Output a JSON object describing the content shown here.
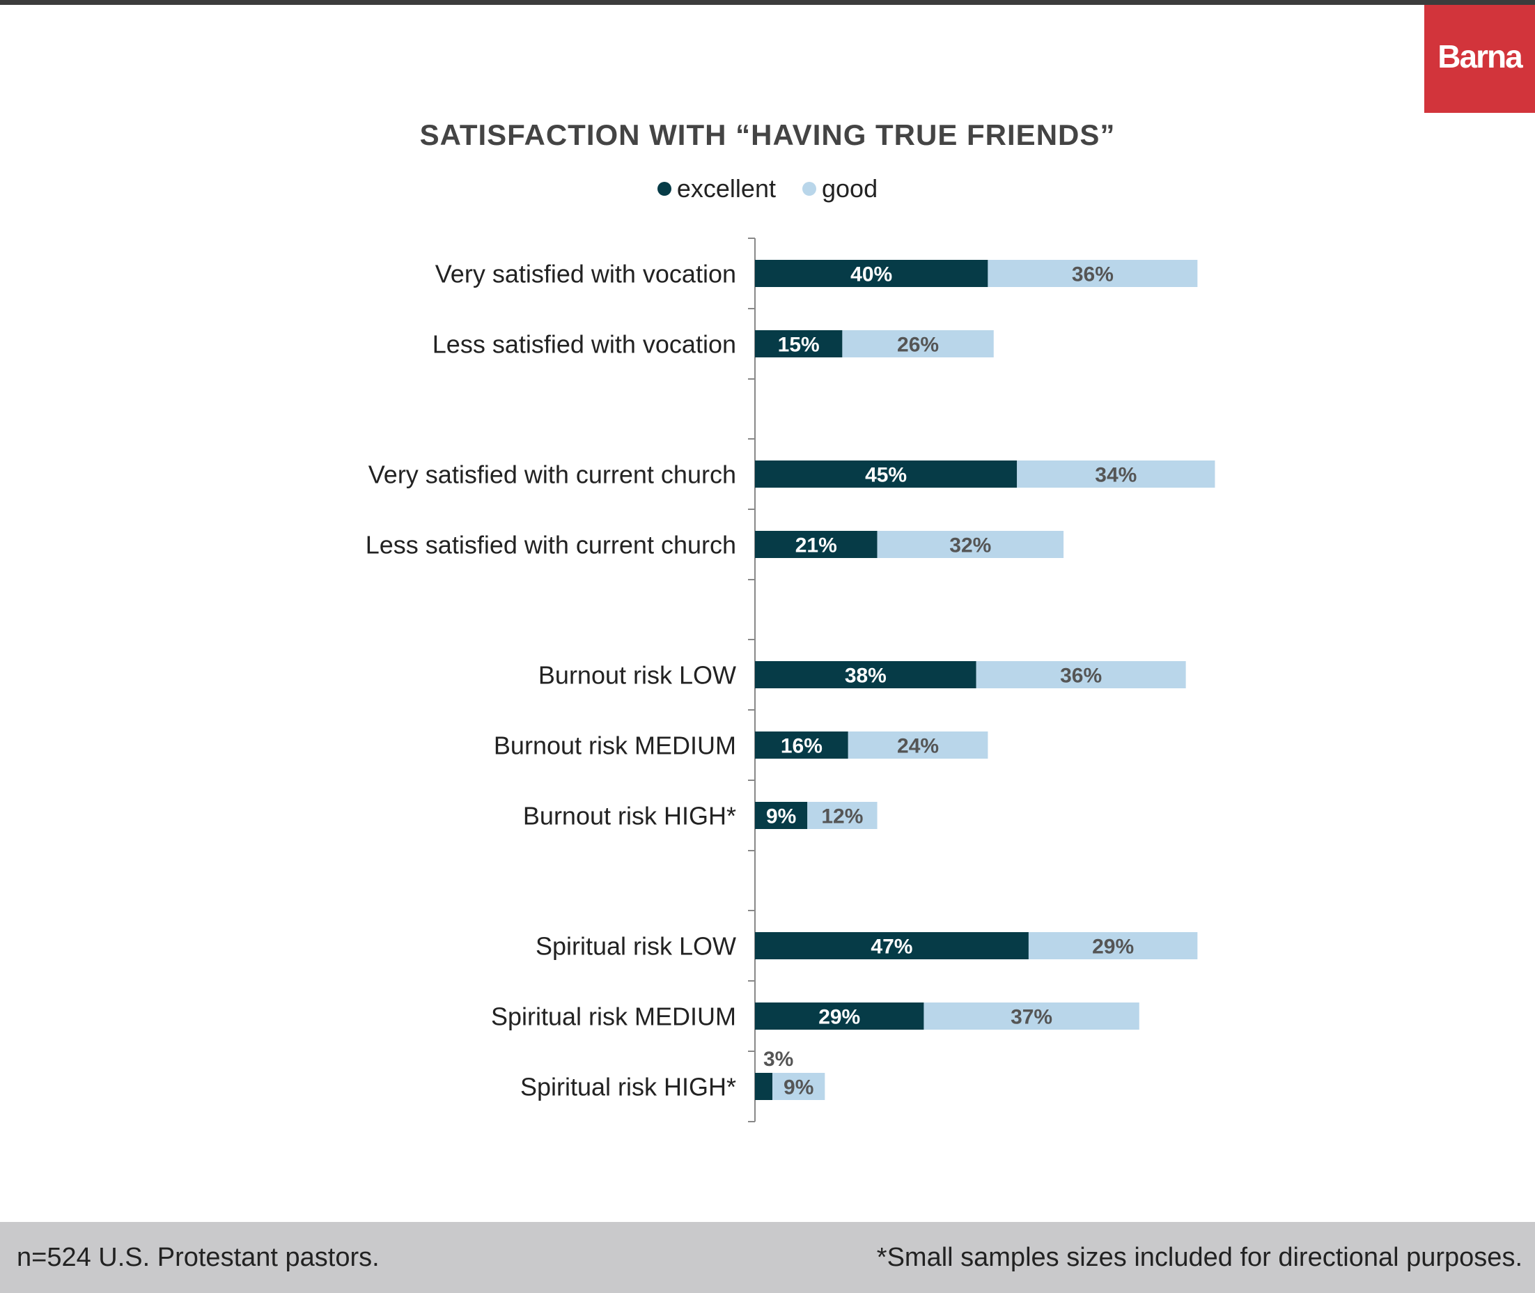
{
  "brand": {
    "logo_text": "Barna"
  },
  "chart_data": {
    "type": "bar",
    "stacked": true,
    "orientation": "horizontal",
    "title": "SATISFACTION WITH “HAVING TRUE FRIENDS”",
    "legend": [
      {
        "name": "excellent",
        "color": "#063b47"
      },
      {
        "name": "good",
        "color": "#b9d6ea"
      }
    ],
    "legend_placement": "top-center",
    "categories": [
      "Very satisfied with vocation",
      "Less satisfied with vocation",
      "Very satisfied with current church",
      "Less satisfied with current church",
      "Burnout risk LOW",
      "Burnout risk MEDIUM",
      "Burnout risk HIGH*",
      "Spiritual risk LOW",
      "Spiritual risk MEDIUM",
      "Spiritual risk HIGH*"
    ],
    "groups": [
      [
        0,
        1
      ],
      [
        2,
        3
      ],
      [
        4,
        5,
        6
      ],
      [
        7,
        8,
        9
      ]
    ],
    "series": [
      {
        "name": "excellent",
        "values": [
          40,
          15,
          45,
          21,
          38,
          16,
          9,
          47,
          29,
          3
        ],
        "labels": [
          "40%",
          "15%",
          "45%",
          "21%",
          "38%",
          "16%",
          "9%",
          "47%",
          "29%",
          "3%"
        ]
      },
      {
        "name": "good",
        "values": [
          36,
          26,
          34,
          32,
          36,
          24,
          12,
          29,
          37,
          9
        ],
        "labels": [
          "36%",
          "26%",
          "34%",
          "32%",
          "36%",
          "24%",
          "12%",
          "29%",
          "37%",
          "9%"
        ]
      }
    ],
    "unit": "%"
  },
  "footer": {
    "note_left": "n=524 U.S. Protestant pastors.",
    "note_right": "*Small samples sizes included for directional purposes."
  }
}
